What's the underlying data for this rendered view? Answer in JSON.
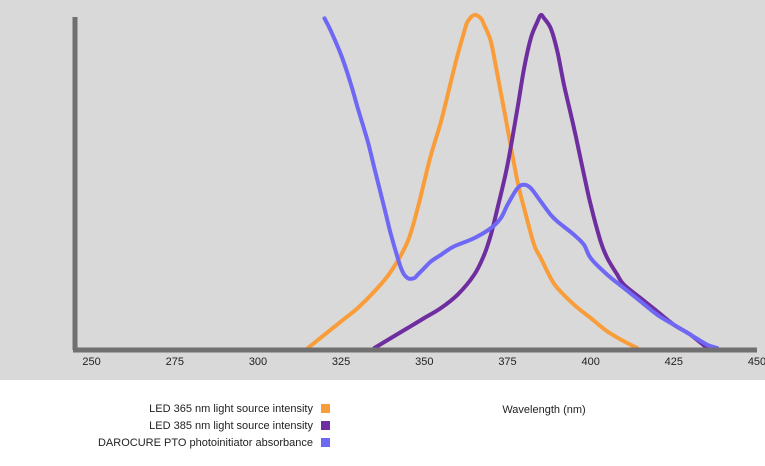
{
  "chart_data": {
    "type": "line",
    "xlabel": "Wavelength (nm)",
    "ylabel": "",
    "xlim": [
      245,
      450
    ],
    "ylim": [
      0,
      1.0
    ],
    "x_ticks": [
      250,
      275,
      300,
      325,
      350,
      375,
      400,
      425,
      450
    ],
    "grid": false,
    "legend_position": "bottom-left",
    "series": [
      {
        "name": "LED 365 nm light source intensity",
        "color": "#f99d3b",
        "x": [
          315,
          320,
          325,
          330,
          335,
          340,
          345,
          348,
          350,
          352,
          355,
          358,
          360,
          362,
          363,
          365,
          367,
          368,
          370,
          372,
          375,
          378,
          380,
          383,
          385,
          388,
          390,
          395,
          400,
          405,
          410,
          414
        ],
        "y": [
          0.0,
          0.04,
          0.08,
          0.12,
          0.17,
          0.23,
          0.32,
          0.42,
          0.5,
          0.58,
          0.68,
          0.8,
          0.88,
          0.95,
          0.98,
          1.0,
          0.99,
          0.97,
          0.92,
          0.82,
          0.66,
          0.5,
          0.42,
          0.31,
          0.27,
          0.21,
          0.18,
          0.13,
          0.09,
          0.05,
          0.02,
          0.0
        ]
      },
      {
        "name": "LED 385 nm light source intensity",
        "color": "#6f2ea0",
        "x": [
          335,
          340,
          345,
          350,
          355,
          360,
          365,
          368,
          370,
          372,
          375,
          378,
          380,
          382,
          384,
          385,
          386,
          388,
          390,
          392,
          395,
          398,
          400,
          403,
          405,
          408,
          410,
          415,
          420,
          425,
          430,
          435
        ],
        "y": [
          0.0,
          0.03,
          0.06,
          0.09,
          0.12,
          0.16,
          0.22,
          0.28,
          0.34,
          0.42,
          0.55,
          0.72,
          0.84,
          0.93,
          0.98,
          1.0,
          0.99,
          0.96,
          0.89,
          0.79,
          0.66,
          0.52,
          0.43,
          0.32,
          0.27,
          0.22,
          0.19,
          0.15,
          0.11,
          0.07,
          0.04,
          0.0
        ]
      },
      {
        "name": "DAROCURE PTO photoinitiator absorbance",
        "color": "#6e68f4",
        "x": [
          320,
          322,
          325,
          328,
          330,
          333,
          335,
          338,
          340,
          343,
          345,
          347,
          348,
          350,
          352,
          355,
          358,
          360,
          365,
          370,
          373,
          375,
          378,
          380,
          382,
          385,
          388,
          390,
          395,
          398,
          400,
          405,
          410,
          415,
          420,
          425,
          430,
          435,
          438
        ],
        "y": [
          0.99,
          0.95,
          0.88,
          0.79,
          0.72,
          0.62,
          0.54,
          0.42,
          0.34,
          0.24,
          0.21,
          0.21,
          0.22,
          0.24,
          0.26,
          0.28,
          0.3,
          0.31,
          0.33,
          0.36,
          0.39,
          0.43,
          0.48,
          0.49,
          0.48,
          0.44,
          0.4,
          0.38,
          0.34,
          0.31,
          0.27,
          0.22,
          0.18,
          0.14,
          0.1,
          0.07,
          0.04,
          0.01,
          0.0
        ]
      }
    ]
  }
}
